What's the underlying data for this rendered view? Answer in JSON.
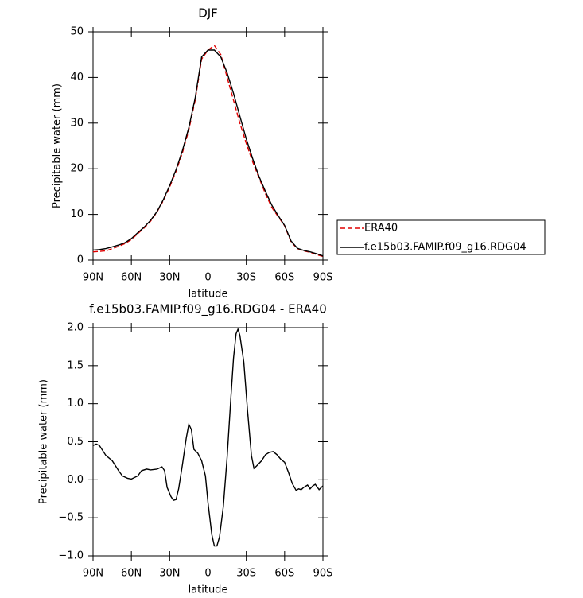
{
  "chart_data": [
    {
      "type": "line",
      "title": "DJF",
      "xlabel": "latitude",
      "ylabel": "Precipitable water (mm)",
      "x": [
        90,
        85,
        80,
        75,
        70,
        65,
        60,
        55,
        50,
        45,
        40,
        35,
        30,
        25,
        20,
        15,
        10,
        5,
        0,
        -5,
        -10,
        -15,
        -20,
        -25,
        -30,
        -35,
        -40,
        -45,
        -50,
        -55,
        -60,
        -65,
        -70,
        -75,
        -80,
        -85,
        -90
      ],
      "series": [
        {
          "name": "ERA40",
          "color": "#e00000",
          "style": "dashed",
          "values": [
            1.8,
            1.9,
            2.0,
            2.5,
            3.0,
            3.6,
            4.5,
            5.8,
            7.0,
            8.5,
            10.5,
            13,
            16,
            19.5,
            23.5,
            28.5,
            35,
            44,
            46,
            47,
            45,
            40,
            35,
            30,
            25.5,
            21.5,
            18,
            14.5,
            11.5,
            9.5,
            7.5,
            4.0,
            2.5,
            2.0,
            1.7,
            1.2,
            0.8
          ]
        },
        {
          "name": "f.e15b03.FAMIP.f09_g16.RDG04",
          "color": "#000000",
          "style": "solid",
          "values": [
            2.2,
            2.3,
            2.5,
            2.9,
            3.3,
            3.8,
            4.7,
            6.0,
            7.2,
            8.7,
            10.6,
            13.2,
            16.3,
            19.8,
            24,
            29,
            35.5,
            44.5,
            46,
            46,
            44.5,
            41,
            36.5,
            31.5,
            26.5,
            22.2,
            18.3,
            15,
            12,
            9.7,
            7.6,
            4.2,
            2.6,
            2.1,
            1.8,
            1.4,
            0.9
          ]
        }
      ],
      "xlim": [
        90,
        -90
      ],
      "xticks": [
        {
          "value": 90,
          "label": "90N"
        },
        {
          "value": 60,
          "label": "60N"
        },
        {
          "value": 30,
          "label": "30N"
        },
        0,
        {
          "value": -30,
          "label": "30S"
        },
        {
          "value": -60,
          "label": "60S"
        },
        {
          "value": -90,
          "label": "90S"
        }
      ],
      "ylim": [
        0,
        50
      ],
      "yticks": [
        0,
        10,
        20,
        30,
        40,
        50
      ],
      "legend": "outside-right"
    },
    {
      "type": "line",
      "title": "f.e15b03.FAMIP.f09_g16.RDG04 - ERA40",
      "xlabel": "latitude",
      "ylabel": "Precipitable water (mm)",
      "x": [
        90,
        87.5,
        85,
        80,
        75,
        70,
        67,
        63,
        60,
        55,
        52,
        48,
        45,
        40,
        36,
        34,
        32,
        29,
        27,
        25,
        23,
        20,
        17,
        15,
        13,
        11,
        8,
        5,
        2,
        0,
        -3,
        -5,
        -7,
        -9,
        -12,
        -15,
        -18,
        -20,
        -22,
        -23.5,
        -25,
        -28,
        -31,
        -34,
        -36,
        -38,
        -42,
        -45,
        -48,
        -51,
        -54,
        -57,
        -60,
        -63,
        -66,
        -69,
        -71,
        -73,
        -75,
        -78,
        -80,
        -82,
        -84,
        -87,
        -90
      ],
      "series": [
        {
          "color": "#000000",
          "style": "solid",
          "values": [
            0.45,
            0.47,
            0.45,
            0.32,
            0.25,
            0.12,
            0.05,
            0.02,
            0.01,
            0.05,
            0.12,
            0.14,
            0.13,
            0.14,
            0.17,
            0.12,
            -0.1,
            -0.22,
            -0.27,
            -0.26,
            -0.12,
            0.2,
            0.55,
            0.73,
            0.66,
            0.4,
            0.35,
            0.25,
            0.05,
            -0.3,
            -0.72,
            -0.87,
            -0.87,
            -0.75,
            -0.35,
            0.3,
            1.1,
            1.6,
            1.92,
            1.98,
            1.9,
            1.55,
            0.9,
            0.32,
            0.15,
            0.18,
            0.25,
            0.33,
            0.36,
            0.37,
            0.33,
            0.27,
            0.23,
            0.1,
            -0.05,
            -0.14,
            -0.12,
            -0.13,
            -0.1,
            -0.07,
            -0.12,
            -0.08,
            -0.06,
            -0.13,
            -0.08
          ]
        }
      ],
      "xlim": [
        90,
        -90
      ],
      "xticks": [
        {
          "value": 90,
          "label": "90N"
        },
        {
          "value": 60,
          "label": "60N"
        },
        {
          "value": 30,
          "label": "30N"
        },
        0,
        {
          "value": -30,
          "label": "30S"
        },
        {
          "value": -60,
          "label": "60S"
        },
        {
          "value": -90,
          "label": "90S"
        }
      ],
      "ylim": [
        -1.0,
        2.0
      ],
      "yticks": [
        {
          "value": -1.0,
          "label": "−1.0"
        },
        {
          "value": -0.5,
          "label": "−0.5"
        },
        {
          "value": 0,
          "label": "0.0"
        },
        0.5,
        {
          "value": 1.0,
          "label": "1.0"
        },
        1.5,
        {
          "value": 2.0,
          "label": "2.0"
        }
      ]
    }
  ]
}
